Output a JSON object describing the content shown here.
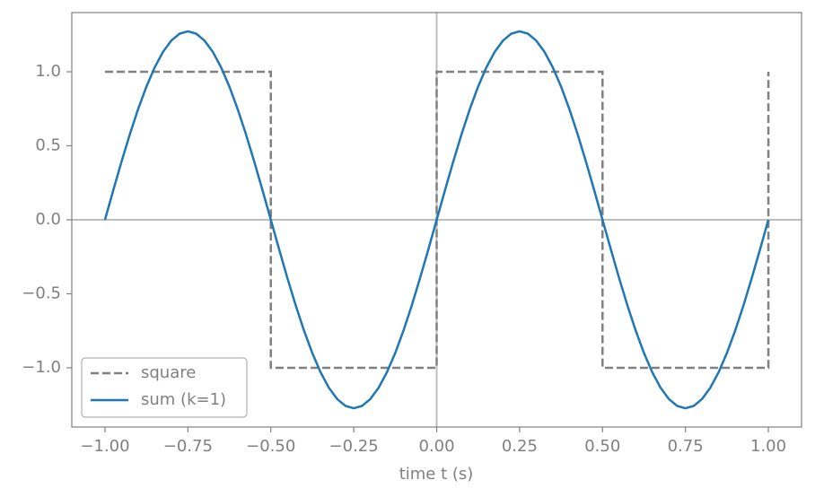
{
  "chart_data": {
    "type": "line",
    "xlabel": "time t (s)",
    "xlim": [
      -1.1,
      1.1
    ],
    "ylim": [
      -1.4,
      1.4
    ],
    "xticks": [
      {
        "value": -1,
        "label": "−1.00"
      },
      {
        "value": -0.75,
        "label": "−0.75"
      },
      {
        "value": -0.5,
        "label": "−0.50"
      },
      {
        "value": -0.25,
        "label": "−0.25"
      },
      {
        "value": 0,
        "label": "0.00"
      },
      0.25,
      {
        "value": 0.5,
        "label": "0.50"
      },
      0.75,
      {
        "value": 1,
        "label": "1.00"
      }
    ],
    "yticks": [
      {
        "value": -1,
        "label": "−1.0"
      },
      {
        "value": -0.5,
        "label": "−0.5"
      },
      {
        "value": 0,
        "label": "0.0"
      },
      0.5,
      {
        "value": 1,
        "label": "1.0"
      }
    ],
    "legend": "lower left",
    "series": [
      {
        "name": "square",
        "color": "#808080",
        "dash": true,
        "x": [
          -1,
          -0.5,
          -0.5,
          0,
          0,
          0.5,
          0.5,
          1,
          1
        ],
        "values": [
          1,
          1,
          -1,
          -1,
          1,
          1,
          -1,
          -1,
          1
        ]
      },
      {
        "name": "sum (k=1)",
        "color": "#1f77b4",
        "dash": false,
        "x": [
          -1,
          -0.975,
          -0.95,
          -0.925,
          -0.9,
          -0.875,
          -0.85,
          -0.825,
          -0.8,
          -0.775,
          -0.75,
          -0.725,
          -0.7,
          -0.675,
          -0.65,
          -0.625,
          -0.6,
          -0.575,
          -0.55,
          -0.525,
          -0.5,
          -0.475,
          -0.45,
          -0.425,
          -0.4,
          -0.375,
          -0.35,
          -0.325,
          -0.3,
          -0.275,
          -0.25,
          -0.225,
          -0.2,
          -0.175,
          -0.15,
          -0.125,
          -0.1,
          -0.075,
          -0.05,
          -0.025,
          0,
          0.025,
          0.05,
          0.075,
          0.1,
          0.125,
          0.15,
          0.175,
          0.2,
          0.225,
          0.25,
          0.275,
          0.3,
          0.325,
          0.35,
          0.375,
          0.4,
          0.425,
          0.45,
          0.475,
          0.5,
          0.525,
          0.55,
          0.575,
          0.6,
          0.625,
          0.65,
          0.675,
          0.7,
          0.725,
          0.75,
          0.775,
          0.8,
          0.825,
          0.85,
          0.875,
          0.9,
          0.925,
          0.95,
          0.975,
          1
        ],
        "values": [
          0,
          0.1992,
          0.3934,
          0.578,
          0.7484,
          0.9003,
          1.0301,
          1.1344,
          1.2109,
          1.2575,
          1.2732,
          1.2575,
          1.2109,
          1.1344,
          1.0301,
          0.9003,
          0.7484,
          0.578,
          0.3934,
          0.1992,
          0,
          -0.1992,
          -0.3934,
          -0.578,
          -0.7484,
          -0.9003,
          -1.0301,
          -1.1344,
          -1.2109,
          -1.2575,
          -1.2732,
          -1.2575,
          -1.2109,
          -1.1344,
          -1.0301,
          -0.9003,
          -0.7484,
          -0.578,
          -0.3934,
          -0.1992,
          0,
          0.1992,
          0.3934,
          0.578,
          0.7484,
          0.9003,
          1.0301,
          1.1344,
          1.2109,
          1.2575,
          1.2732,
          1.2575,
          1.2109,
          1.1344,
          1.0301,
          0.9003,
          0.7484,
          0.578,
          0.3934,
          0.1992,
          0,
          -0.1992,
          -0.3934,
          -0.578,
          -0.7484,
          -0.9003,
          -1.0301,
          -1.1344,
          -1.2109,
          -1.2575,
          -1.2732,
          -1.2575,
          -1.2109,
          -1.1344,
          -1.0301,
          -0.9003,
          -0.7484,
          -0.578,
          -0.3934,
          -0.1992,
          0
        ]
      }
    ]
  }
}
